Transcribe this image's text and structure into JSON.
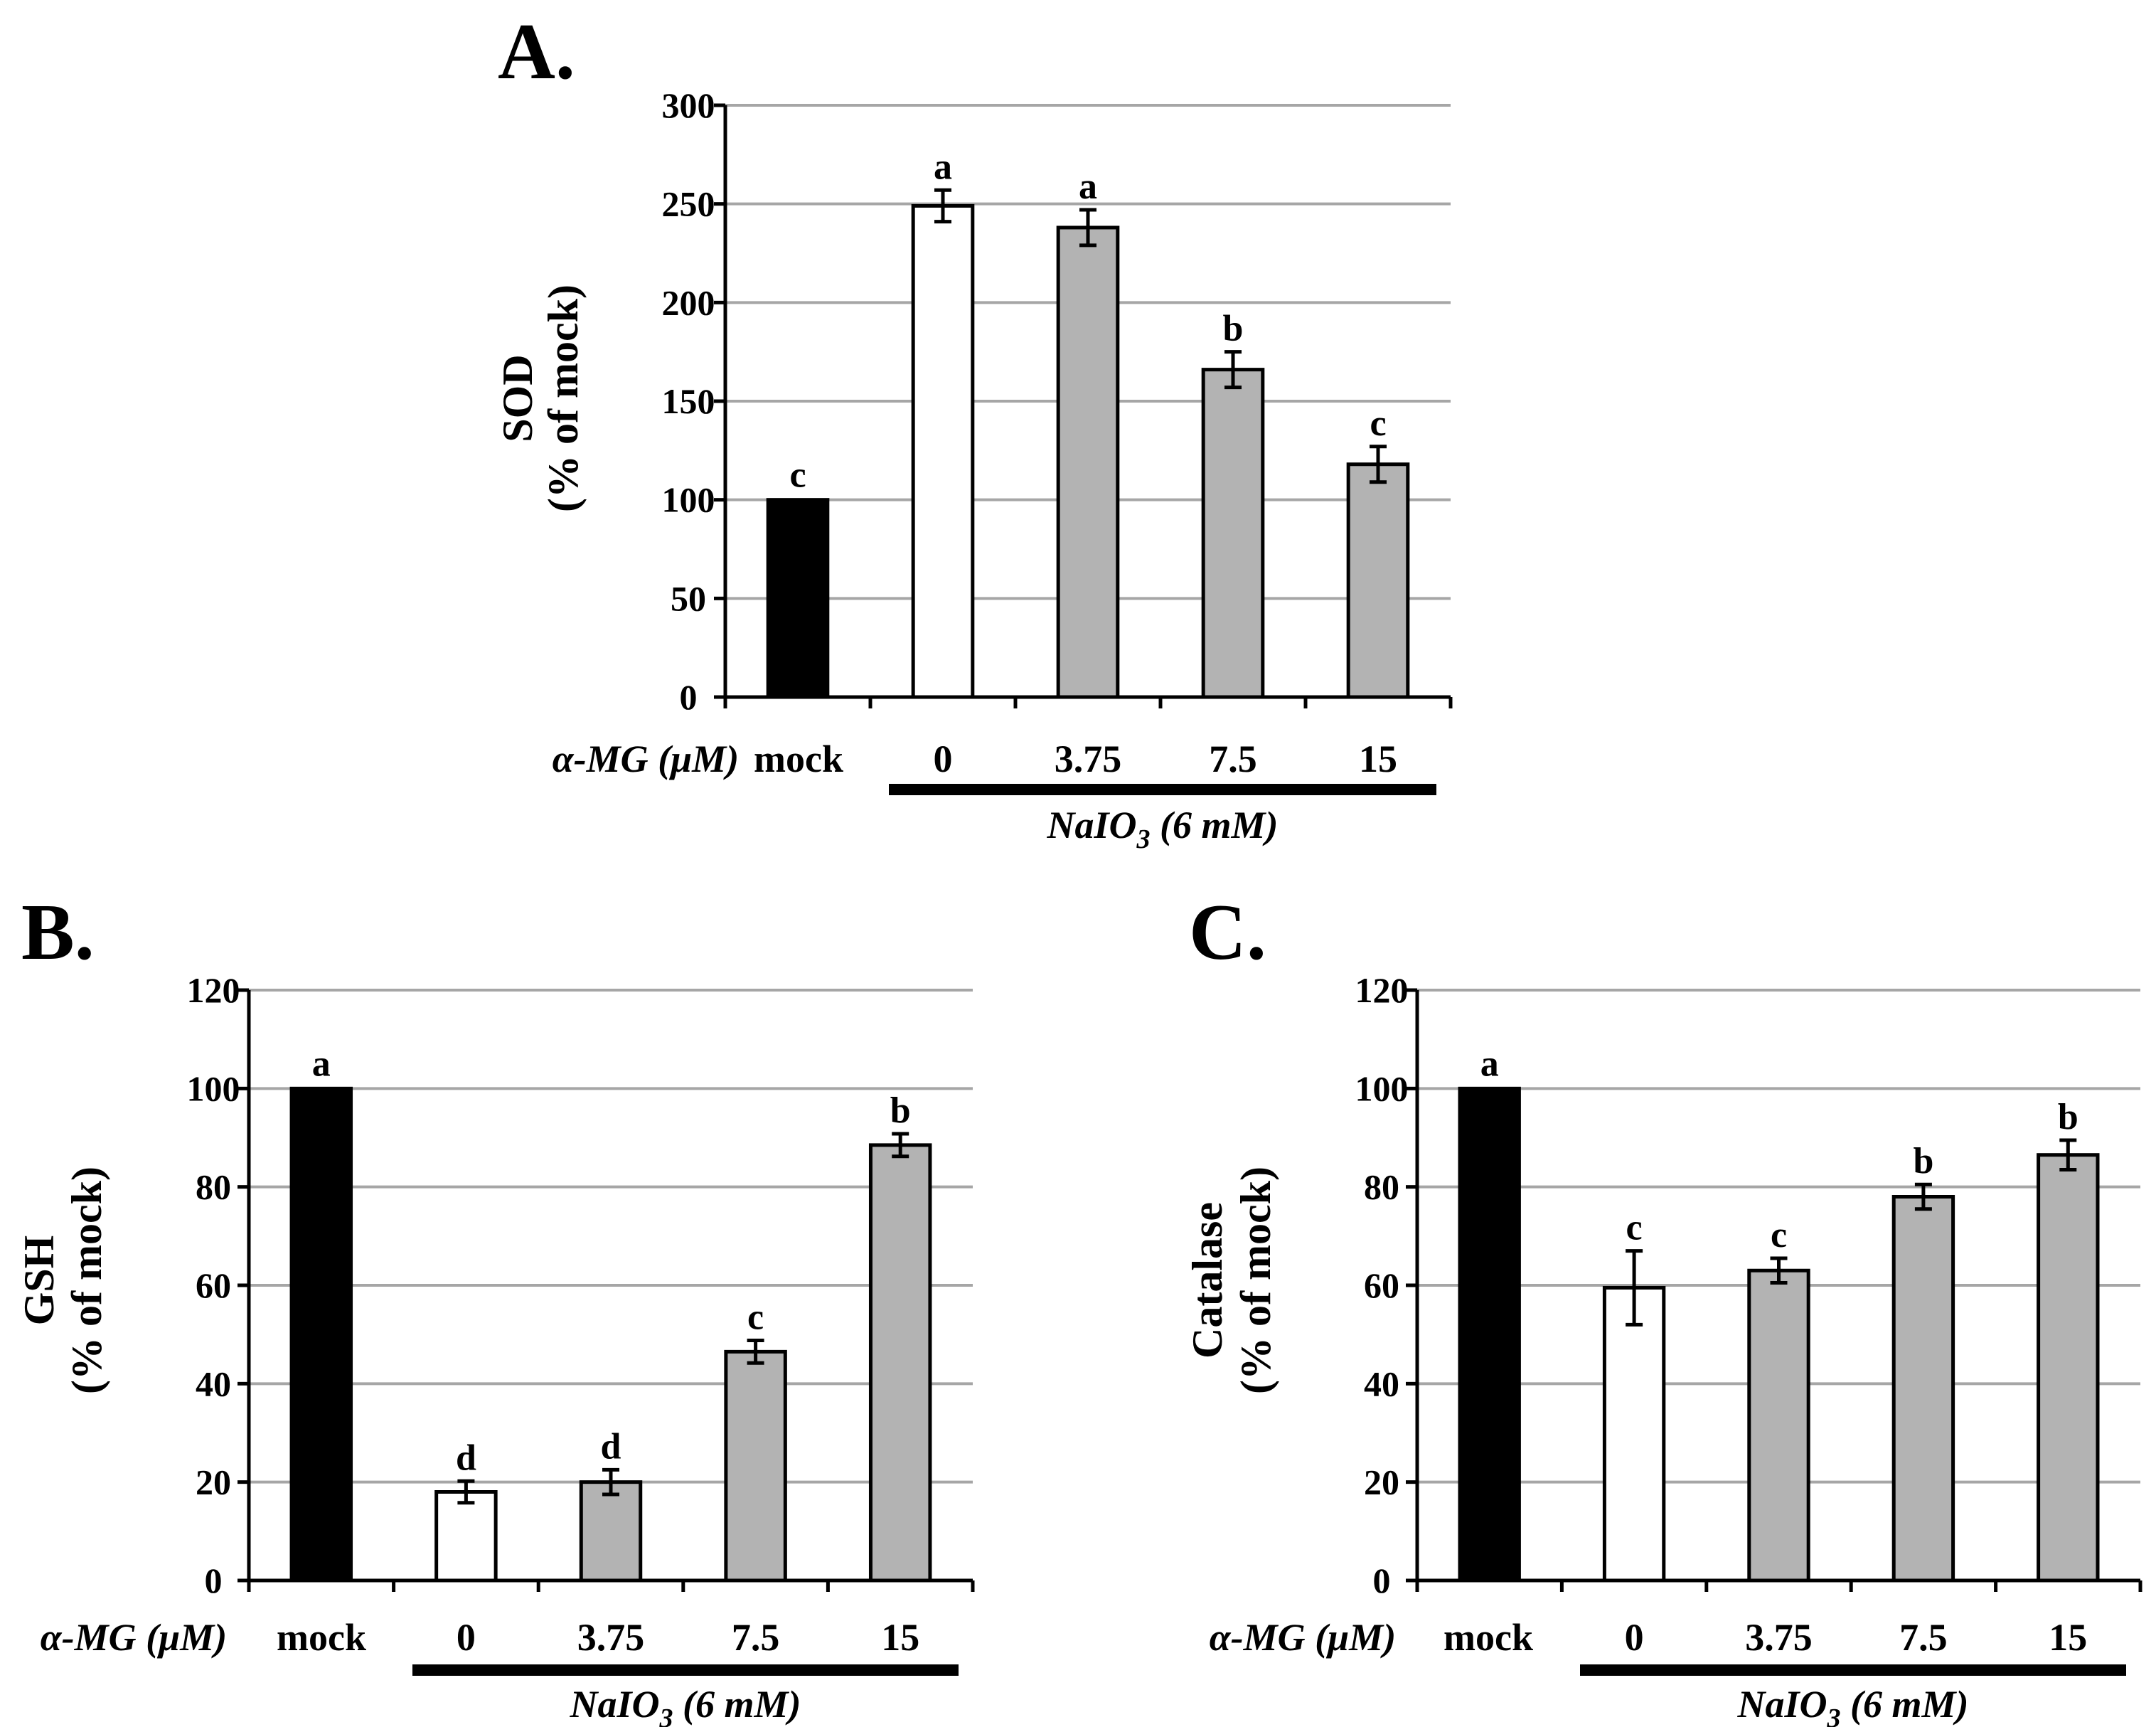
{
  "figure": {
    "panels": [
      "A.",
      "B.",
      "C."
    ],
    "x_title": "α-MG (μM)",
    "group_label": {
      "main": "NaIO",
      "subscript": "3",
      "tail": " (6 mM)"
    }
  },
  "chart_data": [
    {
      "type": "bar",
      "panel": "A.",
      "title": "",
      "ylabel_line1": "SOD",
      "ylabel_line2": "(% of mock)",
      "xlabel": "α-MG (μM)",
      "categories": [
        "mock",
        "0",
        "3.75",
        "7.5",
        "15"
      ],
      "values": [
        100,
        249,
        238,
        166,
        118
      ],
      "errors": [
        0,
        8,
        9,
        9,
        9
      ],
      "significance": [
        "c",
        "a",
        "a",
        "b",
        "c"
      ],
      "bar_colors": [
        "#000000",
        "#ffffff",
        "#b3b3b3",
        "#b3b3b3",
        "#b3b3b3"
      ],
      "ylim": [
        0,
        300
      ],
      "yticks": [
        0,
        50,
        100,
        150,
        200,
        250,
        300
      ],
      "grid": true,
      "group_label": "NaIO3 (6 mM)"
    },
    {
      "type": "bar",
      "panel": "B.",
      "title": "",
      "ylabel_line1": "GSH",
      "ylabel_line2": "(% of mock)",
      "xlabel": "α-MG (μM)",
      "categories": [
        "mock",
        "0",
        "3.75",
        "7.5",
        "15"
      ],
      "values": [
        100,
        18,
        20,
        46.5,
        88.5
      ],
      "errors": [
        0,
        2.2,
        2.5,
        2.3,
        2.3
      ],
      "significance": [
        "a",
        "d",
        "d",
        "c",
        "b"
      ],
      "bar_colors": [
        "#000000",
        "#ffffff",
        "#b3b3b3",
        "#b3b3b3",
        "#b3b3b3"
      ],
      "ylim": [
        0,
        120
      ],
      "yticks": [
        0,
        20,
        40,
        60,
        80,
        100,
        120
      ],
      "grid": true,
      "group_label": "NaIO3 (6 mM)"
    },
    {
      "type": "bar",
      "panel": "C.",
      "title": "",
      "ylabel_line1": "Catalase",
      "ylabel_line2": "(% of mock)",
      "xlabel": "α-MG (μM)",
      "categories": [
        "mock",
        "0",
        "3.75",
        "7.5",
        "15"
      ],
      "values": [
        100,
        59.5,
        63,
        78,
        86.5
      ],
      "errors": [
        0,
        7.5,
        2.5,
        2.5,
        3
      ],
      "significance": [
        "a",
        "c",
        "c",
        "b",
        "b"
      ],
      "bar_colors": [
        "#000000",
        "#ffffff",
        "#b3b3b3",
        "#b3b3b3",
        "#b3b3b3"
      ],
      "ylim": [
        0,
        120
      ],
      "yticks": [
        0,
        20,
        40,
        60,
        80,
        100,
        120
      ],
      "grid": true,
      "group_label": "NaIO3 (6 mM)"
    }
  ]
}
